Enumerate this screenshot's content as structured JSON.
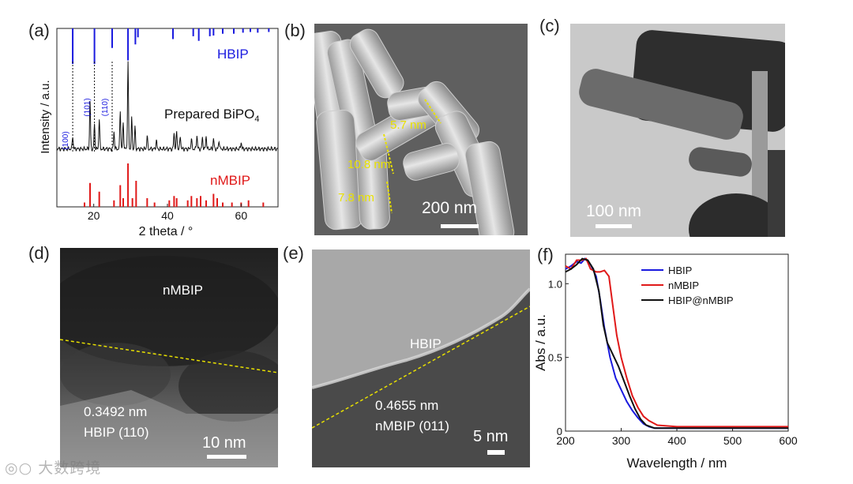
{
  "panels": {
    "a": {
      "label": "(a)"
    },
    "b": {
      "label": "(b)",
      "scale_bar": "200 nm",
      "measurements": [
        "5.7 nm",
        "10.8 nm",
        "7.8 nm"
      ]
    },
    "c": {
      "label": "(c)",
      "scale_bar": "100 nm"
    },
    "d": {
      "label": "(d)",
      "region_top": "nMBIP",
      "spacing": "0.3492 nm",
      "plane": "HBIP (110)",
      "scale_bar": "10 nm"
    },
    "e": {
      "label": "(e)",
      "region_top": "HBIP",
      "spacing": "0.4655 nm",
      "plane": "nMBIP (011)",
      "scale_bar": "5 nm"
    },
    "f": {
      "label": "(f)"
    }
  },
  "colors": {
    "HBIP": "#1a1adf",
    "nMBIP": "#e01919",
    "HBIP@nMBIP": "#111111",
    "annotation": "#e8e000"
  },
  "watermark": "大数跨境",
  "chart_data": [
    {
      "type": "line",
      "panel": "a",
      "xlabel": "2 theta / °",
      "ylabel": "Intensity / a.u.",
      "xlim": [
        10,
        70
      ],
      "xticks": [
        20,
        40,
        60
      ],
      "series_labels": {
        "HBIP": "HBIP",
        "prepared_prefix": "Prepared BiPO",
        "prepared_sub": "4",
        "nMBIP": "nMBIP"
      },
      "peak_labels": [
        {
          "text": "(100)",
          "x": 14.3
        },
        {
          "text": "(101)",
          "x": 20.2
        },
        {
          "text": "(110)",
          "x": 25.0
        }
      ],
      "reference_HBIP": [
        [
          14.3,
          1.0
        ],
        [
          20.2,
          1.0
        ],
        [
          25.0,
          0.55
        ],
        [
          29.3,
          0.9
        ],
        [
          31.3,
          0.45
        ],
        [
          32.0,
          0.25
        ],
        [
          41.5,
          0.3
        ],
        [
          47.0,
          0.22
        ],
        [
          48.5,
          0.35
        ],
        [
          51.5,
          0.22
        ],
        [
          52.5,
          0.2
        ],
        [
          55.0,
          0.15
        ],
        [
          58.0,
          0.15
        ],
        [
          60.5,
          0.12
        ],
        [
          62.5,
          0.1
        ],
        [
          64.5,
          0.12
        ],
        [
          67.5,
          0.1
        ]
      ],
      "prepared": [
        [
          14.3,
          0.15
        ],
        [
          19.0,
          0.55
        ],
        [
          20.2,
          0.28
        ],
        [
          21.5,
          0.35
        ],
        [
          25.5,
          0.2
        ],
        [
          27.2,
          0.45
        ],
        [
          28.0,
          0.3
        ],
        [
          29.3,
          1.0
        ],
        [
          30.3,
          0.35
        ],
        [
          31.2,
          0.25
        ],
        [
          34.5,
          0.15
        ],
        [
          37.0,
          0.1
        ],
        [
          41.8,
          0.18
        ],
        [
          42.5,
          0.2
        ],
        [
          43.5,
          0.15
        ],
        [
          46.5,
          0.12
        ],
        [
          48.0,
          0.16
        ],
        [
          49.5,
          0.13
        ],
        [
          50.5,
          0.15
        ],
        [
          52.5,
          0.12
        ],
        [
          54.0,
          0.1
        ],
        [
          60.0,
          0.08
        ]
      ],
      "reference_nMBIP": [
        [
          17.5,
          0.1
        ],
        [
          19.0,
          0.55
        ],
        [
          21.5,
          0.35
        ],
        [
          25.5,
          0.15
        ],
        [
          27.2,
          0.5
        ],
        [
          28.0,
          0.2
        ],
        [
          29.3,
          1.0
        ],
        [
          30.5,
          0.2
        ],
        [
          31.5,
          0.6
        ],
        [
          34.5,
          0.2
        ],
        [
          36.5,
          0.1
        ],
        [
          40.5,
          0.15
        ],
        [
          41.8,
          0.25
        ],
        [
          42.5,
          0.2
        ],
        [
          45.5,
          0.15
        ],
        [
          46.5,
          0.25
        ],
        [
          48.0,
          0.2
        ],
        [
          49.0,
          0.25
        ],
        [
          50.5,
          0.15
        ],
        [
          52.5,
          0.3
        ],
        [
          53.5,
          0.2
        ],
        [
          55.0,
          0.1
        ],
        [
          57.5,
          0.1
        ],
        [
          60.0,
          0.1
        ],
        [
          62.0,
          0.15
        ],
        [
          66.0,
          0.1
        ]
      ]
    },
    {
      "type": "line",
      "panel": "f",
      "xlabel": "Wavelength / nm",
      "ylabel": "Abs / a.u.",
      "xlim": [
        200,
        600
      ],
      "ylim": [
        0,
        1.2
      ],
      "xticks": [
        200,
        300,
        400,
        500,
        600
      ],
      "yticks": [
        0,
        0.5,
        1.0
      ],
      "yticklabels": [
        "0",
        "0.5",
        "1.0"
      ],
      "legend": "top-right",
      "series": [
        {
          "name": "HBIP",
          "color": "#1a1adf",
          "points": [
            [
              200,
              1.1
            ],
            [
              210,
              1.12
            ],
            [
              220,
              1.15
            ],
            [
              228,
              1.14
            ],
            [
              235,
              1.17
            ],
            [
              245,
              1.13
            ],
            [
              255,
              1.05
            ],
            [
              262,
              0.9
            ],
            [
              270,
              0.7
            ],
            [
              280,
              0.5
            ],
            [
              290,
              0.36
            ],
            [
              300,
              0.28
            ],
            [
              310,
              0.2
            ],
            [
              320,
              0.14
            ],
            [
              330,
              0.09
            ],
            [
              340,
              0.05
            ],
            [
              350,
              0.03
            ],
            [
              360,
              0.02
            ],
            [
              400,
              0.02
            ],
            [
              600,
              0.02
            ]
          ]
        },
        {
          "name": "nMBIP",
          "color": "#e01919",
          "points": [
            [
              200,
              1.12
            ],
            [
              210,
              1.1
            ],
            [
              220,
              1.16
            ],
            [
              230,
              1.16
            ],
            [
              237,
              1.17
            ],
            [
              245,
              1.1
            ],
            [
              255,
              1.08
            ],
            [
              262,
              1.08
            ],
            [
              270,
              1.09
            ],
            [
              278,
              1.05
            ],
            [
              285,
              0.85
            ],
            [
              292,
              0.65
            ],
            [
              300,
              0.5
            ],
            [
              310,
              0.36
            ],
            [
              320,
              0.24
            ],
            [
              330,
              0.16
            ],
            [
              340,
              0.1
            ],
            [
              350,
              0.07
            ],
            [
              365,
              0.04
            ],
            [
              400,
              0.03
            ],
            [
              600,
              0.03
            ]
          ]
        },
        {
          "name": "HBIP@nMBIP",
          "color": "#111111",
          "points": [
            [
              200,
              1.08
            ],
            [
              210,
              1.1
            ],
            [
              220,
              1.13
            ],
            [
              230,
              1.17
            ],
            [
              240,
              1.16
            ],
            [
              250,
              1.1
            ],
            [
              260,
              0.95
            ],
            [
              268,
              0.72
            ],
            [
              275,
              0.6
            ],
            [
              285,
              0.52
            ],
            [
              295,
              0.44
            ],
            [
              305,
              0.34
            ],
            [
              315,
              0.24
            ],
            [
              325,
              0.15
            ],
            [
              335,
              0.08
            ],
            [
              345,
              0.04
            ],
            [
              360,
              0.02
            ],
            [
              400,
              0.02
            ],
            [
              600,
              0.02
            ]
          ]
        }
      ]
    }
  ]
}
